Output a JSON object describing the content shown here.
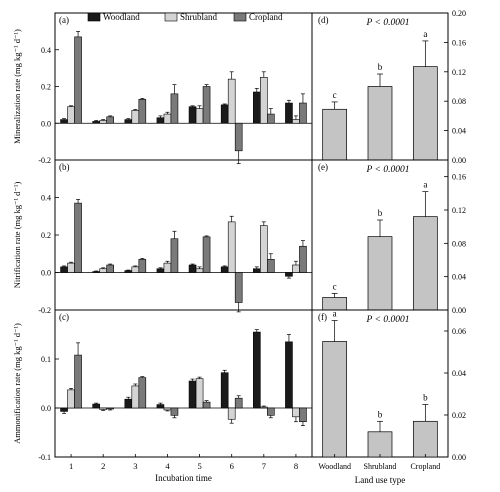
{
  "legend": {
    "entries": [
      {
        "label": "Woodland",
        "color": "#1a1a1a"
      },
      {
        "label": "Shrubland",
        "color": "#d4d4d4"
      },
      {
        "label": "Cropland",
        "color": "#7a7a7a"
      }
    ]
  },
  "chart_data": [
    {
      "type": "bar",
      "panel": "(a)",
      "ylabel": "Mineralization rate (mg kg⁻¹ d⁻¹)",
      "ylim": [
        -0.2,
        0.6
      ],
      "yticks": [
        "-0.2",
        "0.0",
        "0.2",
        "0.4"
      ],
      "xlabel": "",
      "categories": [
        "1",
        "2",
        "3",
        "4",
        "5",
        "6",
        "7",
        "8"
      ],
      "series": [
        {
          "name": "Woodland",
          "values": [
            0.02,
            0.01,
            0.02,
            0.03,
            0.09,
            0.1,
            0.17,
            0.11
          ],
          "errors": [
            0.005,
            0.005,
            0.005,
            0.01,
            0.005,
            0.005,
            0.02,
            0.015
          ]
        },
        {
          "name": "Shrubland",
          "values": [
            0.09,
            0.015,
            0.07,
            0.05,
            0.08,
            0.24,
            0.25,
            0.02
          ],
          "errors": [
            0.005,
            0.005,
            0.005,
            0.01,
            0.015,
            0.04,
            0.03,
            0.02
          ]
        },
        {
          "name": "Cropland",
          "values": [
            0.47,
            0.035,
            0.13,
            0.16,
            0.2,
            -0.15,
            0.05,
            0.11
          ],
          "errors": [
            0.03,
            0.005,
            0.005,
            0.05,
            0.01,
            0.07,
            0.03,
            0.05
          ]
        }
      ]
    },
    {
      "type": "bar",
      "panel": "(b)",
      "ylabel": "Nitrification rate (mg kg⁻¹ d⁻¹)",
      "ylim": [
        -0.2,
        0.6
      ],
      "yticks": [
        "-0.2",
        "0.0",
        "0.2",
        "0.4"
      ],
      "xlabel": "",
      "categories": [
        "1",
        "2",
        "3",
        "4",
        "5",
        "6",
        "7",
        "8"
      ],
      "series": [
        {
          "name": "Woodland",
          "values": [
            0.03,
            0.005,
            0.01,
            0.02,
            0.04,
            0.03,
            0.02,
            -0.02
          ],
          "errors": [
            0.005,
            0.003,
            0.003,
            0.005,
            0.005,
            0.005,
            0.01,
            0.01
          ]
        },
        {
          "name": "Shrubland",
          "values": [
            0.05,
            0.02,
            0.03,
            0.05,
            0.02,
            0.27,
            0.25,
            0.04
          ],
          "errors": [
            0.005,
            0.005,
            0.005,
            0.01,
            0.01,
            0.03,
            0.02,
            0.02
          ]
        },
        {
          "name": "Cropland",
          "values": [
            0.37,
            0.04,
            0.07,
            0.18,
            0.19,
            -0.16,
            0.07,
            0.14
          ],
          "errors": [
            0.02,
            0.005,
            0.005,
            0.04,
            0.005,
            0.05,
            0.03,
            0.03
          ]
        }
      ]
    },
    {
      "type": "bar",
      "panel": "(c)",
      "ylabel": "Ammonification rate (mg kg⁻¹ d⁻¹)",
      "ylim": [
        -0.1,
        0.2
      ],
      "yticks": [
        "-0.1",
        "0.0",
        "0.1"
      ],
      "xlabel": "Incubation time",
      "categories": [
        "1",
        "2",
        "3",
        "4",
        "5",
        "6",
        "7",
        "8"
      ],
      "series": [
        {
          "name": "Woodland",
          "values": [
            -0.007,
            0.008,
            0.018,
            0.007,
            0.055,
            0.072,
            0.155,
            0.135
          ],
          "errors": [
            0.004,
            0.002,
            0.004,
            0.003,
            0.004,
            0.005,
            0.005,
            0.015
          ]
        },
        {
          "name": "Shrubland",
          "values": [
            0.037,
            -0.003,
            0.045,
            -0.004,
            0.06,
            -0.023,
            0.002,
            -0.018
          ],
          "errors": [
            0.003,
            0.002,
            0.004,
            0.002,
            0.003,
            0.008,
            0.002,
            0.01
          ]
        },
        {
          "name": "Cropland",
          "values": [
            0.108,
            -0.002,
            0.062,
            -0.015,
            0.012,
            0.02,
            -0.015,
            -0.028
          ],
          "errors": [
            0.025,
            0.002,
            0.002,
            0.005,
            0.003,
            0.005,
            0.005,
            0.008
          ]
        }
      ]
    },
    {
      "type": "bar",
      "panel": "(d)",
      "annotation": "P < 0.0001",
      "ylim": [
        0,
        0.2
      ],
      "yticks": [
        "0.00",
        "0.04",
        "0.08",
        "0.12",
        "0.16",
        "0.20"
      ],
      "categories": [
        "Woodland",
        "Shrubland",
        "Cropland"
      ],
      "values": [
        0.069,
        0.1,
        0.127
      ],
      "errors": [
        0.01,
        0.017,
        0.035
      ],
      "letters": [
        "c",
        "b",
        "a"
      ]
    },
    {
      "type": "bar",
      "panel": "(e)",
      "annotation": "P < 0.0001",
      "ylim": [
        0,
        0.18
      ],
      "yticks": [
        "0.00",
        "0.04",
        "0.08",
        "0.12",
        "0.16"
      ],
      "categories": [
        "Woodland",
        "Shrubland",
        "Cropland"
      ],
      "values": [
        0.015,
        0.088,
        0.112
      ],
      "errors": [
        0.005,
        0.02,
        0.03
      ],
      "letters": [
        "c",
        "b",
        "a"
      ]
    },
    {
      "type": "bar",
      "panel": "(f)",
      "annotation": "P < 0.0001",
      "ylim": [
        0,
        0.07
      ],
      "yticks": [
        "0.00",
        "0.02",
        "0.04",
        "0.06"
      ],
      "xlabel": "Land use type",
      "categories": [
        "Woodland",
        "Shrubland",
        "Cropland"
      ],
      "values": [
        0.055,
        0.012,
        0.017
      ],
      "errors": [
        0.01,
        0.005,
        0.008
      ],
      "letters": [
        "a",
        "b",
        "b"
      ]
    }
  ]
}
